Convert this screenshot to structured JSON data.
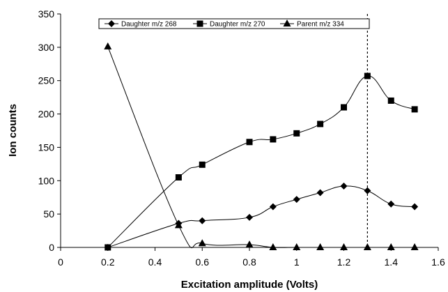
{
  "chart_data": {
    "type": "line",
    "title": "",
    "xlabel": "Excitation amplitude (Volts)",
    "ylabel": "Ion counts",
    "xlim": [
      0,
      1.6
    ],
    "ylim": [
      0,
      350
    ],
    "xticks": [
      0,
      0.2,
      0.4,
      0.6,
      0.8,
      1,
      1.2,
      1.4,
      1.6
    ],
    "xtick_labels": [
      "0",
      "0.2",
      "0.4",
      "0.6",
      "0.8",
      "1",
      "1.2",
      "1.4",
      "1.6"
    ],
    "yticks": [
      0,
      50,
      100,
      150,
      200,
      250,
      300,
      350
    ],
    "ytick_labels": [
      "0",
      "50",
      "100",
      "150",
      "200",
      "250",
      "300",
      "350"
    ],
    "grid": false,
    "legend_position": "top",
    "reference_line": {
      "x": 1.3,
      "style": "dotted"
    },
    "series": [
      {
        "name": "Daughter m/z 268",
        "marker": "diamond",
        "x": [
          0.2,
          0.5,
          0.6,
          0.8,
          0.9,
          1.0,
          1.1,
          1.2,
          1.3,
          1.4,
          1.5
        ],
        "y": [
          0,
          36,
          40,
          45,
          61,
          72,
          82,
          92,
          85,
          65,
          61
        ]
      },
      {
        "name": "Daughter m/z 270",
        "marker": "square",
        "x": [
          0.2,
          0.5,
          0.6,
          0.8,
          0.9,
          1.0,
          1.1,
          1.2,
          1.3,
          1.4,
          1.5
        ],
        "y": [
          0,
          105,
          124,
          158,
          162,
          171,
          185,
          210,
          257,
          220,
          207
        ]
      },
      {
        "name": "Parent m/z 334",
        "marker": "triangle",
        "x": [
          0.2,
          0.5,
          0.6,
          0.8,
          0.9,
          1.0,
          1.1,
          1.2,
          1.3,
          1.4,
          1.5
        ],
        "y": [
          301,
          33,
          6,
          4,
          0,
          0,
          0,
          0,
          0,
          0,
          0
        ]
      }
    ]
  }
}
